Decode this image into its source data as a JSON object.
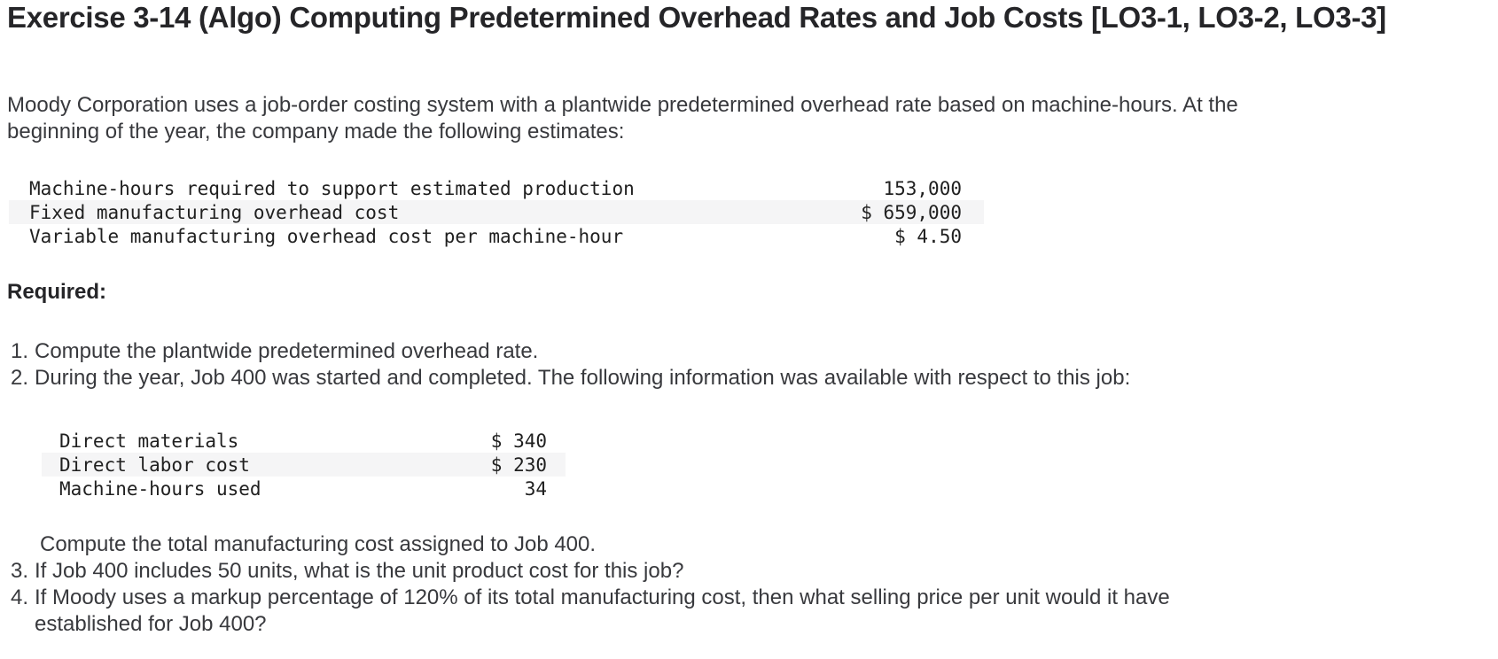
{
  "title": "Exercise 3-14 (Algo) Computing Predetermined Overhead Rates and Job Costs [LO3-1, LO3-2, LO3-3]",
  "intro": {
    "lines": [
      "Moody Corporation uses a job-order costing system with a plantwide predetermined overhead rate based on machine-hours. At the",
      "beginning of the year, the company made the following estimates:"
    ]
  },
  "estimates_table": {
    "rows": [
      {
        "label": "Machine-hours required to support estimated production",
        "value": "153,000"
      },
      {
        "label": "Fixed manufacturing overhead cost",
        "value": "$ 659,000"
      },
      {
        "label": "Variable manufacturing overhead cost per machine-hour",
        "value": "$ 4.50"
      }
    ]
  },
  "required_label": "Required:",
  "requirements": [
    {
      "number": "1.",
      "text": "Compute the plantwide predetermined overhead rate."
    },
    {
      "number": "2.",
      "text": "During the year, Job 400 was started and completed. The following information was available with respect to this job:"
    },
    {
      "number": "3.",
      "text": "If Job 400 includes 50 units, what is the unit product cost for this job?"
    },
    {
      "number": "4.",
      "line1": "If Moody uses a markup percentage of 120% of its total manufacturing cost, then what selling price per unit would it have",
      "line2": "established for Job 400?"
    }
  ],
  "job_table": {
    "rows": [
      {
        "label": "Direct materials",
        "value": "$ 340"
      },
      {
        "label": "Direct labor cost",
        "value": "$ 230"
      },
      {
        "label": "Machine-hours used",
        "value": "34"
      }
    ]
  },
  "note": "Compute the total manufacturing cost assigned to Job 400.",
  "colors": {
    "row_shade": "#f5f5f6",
    "body_text": "#38393d",
    "heading_text": "#252528",
    "mono_text": "#202020"
  }
}
